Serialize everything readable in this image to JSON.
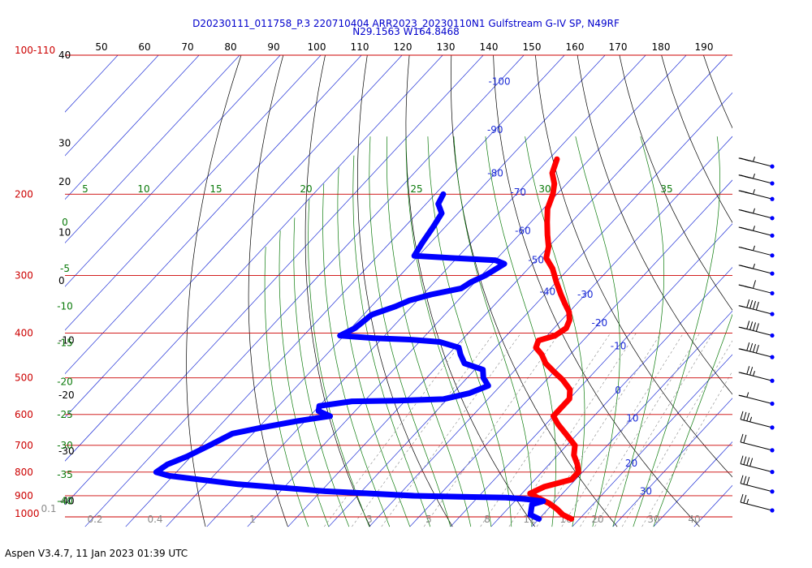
{
  "chart_data": {
    "type": "skew-t-log-p",
    "title": "D20230111_011758_P.3 220710404 ARR2023_20230110N1 Gulfstream G-IV SP, N49RF",
    "subtitle": "N29.1563 W164.8468",
    "footer": "Aspen V3.4.7, 11 Jan 2023  01:39 UTC",
    "pressure_labels": [
      "100-110",
      "200",
      "300",
      "400",
      "500",
      "600",
      "700",
      "800",
      "900",
      "1000"
    ],
    "pressure_levels": [
      100,
      200,
      300,
      400,
      500,
      600,
      700,
      800,
      900,
      1000
    ],
    "isobar_color": "#cc0000",
    "top_temp_labels": [
      "50",
      "60",
      "70",
      "80",
      "90",
      "100",
      "110",
      "120",
      "130",
      "140",
      "150",
      "160",
      "170",
      "180",
      "190"
    ],
    "left_black_labels": [
      {
        "text": "40",
        "p": 100
      },
      {
        "text": "30",
        "p": 155
      },
      {
        "text": "20",
        "p": 188
      },
      {
        "text": "10",
        "p": 242
      },
      {
        "text": "0",
        "p": 308
      },
      {
        "text": "-10",
        "p": 415
      },
      {
        "text": "-20",
        "p": 545
      },
      {
        "text": "-30",
        "p": 720
      },
      {
        "text": "-40",
        "p": 925
      }
    ],
    "isotherm_labels": [
      {
        "text": "-100",
        "p": 114
      },
      {
        "text": "-90",
        "p": 145
      },
      {
        "text": "-80",
        "p": 180
      },
      {
        "text": "-70",
        "p": 198
      },
      {
        "text": "-60",
        "p": 240
      },
      {
        "text": "-50",
        "p": 278
      },
      {
        "text": "-40",
        "p": 325
      },
      {
        "text": "-30",
        "p": 330
      },
      {
        "text": "-20",
        "p": 380
      },
      {
        "text": "-10",
        "p": 427
      },
      {
        "text": "0",
        "p": 532
      },
      {
        "text": "10",
        "p": 612
      },
      {
        "text": "20",
        "p": 765
      },
      {
        "text": "30",
        "p": 880
      }
    ],
    "theta_labels": [
      {
        "text": "5",
        "p": 195
      },
      {
        "text": "10",
        "p": 195
      },
      {
        "text": "15",
        "p": 195
      },
      {
        "text": "20",
        "p": 195
      },
      {
        "text": "25",
        "p": 195
      },
      {
        "text": "30",
        "p": 195
      },
      {
        "text": "35",
        "p": 195
      },
      {
        "text": "0",
        "p": 230
      },
      {
        "text": "-5",
        "p": 290
      },
      {
        "text": "-10",
        "p": 350
      },
      {
        "text": "-15",
        "p": 420
      },
      {
        "text": "-20",
        "p": 510
      },
      {
        "text": "-25",
        "p": 600
      },
      {
        "text": "-30",
        "p": 700
      },
      {
        "text": "-35",
        "p": 810
      },
      {
        "text": "-40",
        "p": 925
      }
    ],
    "mixing_ratio_labels": [
      "0.1",
      "0.2",
      "0.4",
      "1",
      "3",
      "5",
      "8",
      "12",
      "16",
      "20",
      "30",
      "40"
    ],
    "series": [
      {
        "name": "Temperature",
        "color": "#ff0000",
        "points": [
          {
            "p": 168,
            "t": -68
          },
          {
            "p": 180,
            "t": -66
          },
          {
            "p": 190,
            "t": -63
          },
          {
            "p": 200,
            "t": -61
          },
          {
            "p": 215,
            "t": -59
          },
          {
            "p": 230,
            "t": -56
          },
          {
            "p": 245,
            "t": -53
          },
          {
            "p": 260,
            "t": -50
          },
          {
            "p": 275,
            "t": -48
          },
          {
            "p": 290,
            "t": -44
          },
          {
            "p": 310,
            "t": -40
          },
          {
            "p": 330,
            "t": -36
          },
          {
            "p": 345,
            "t": -33
          },
          {
            "p": 360,
            "t": -30
          },
          {
            "p": 375,
            "t": -28
          },
          {
            "p": 390,
            "t": -27
          },
          {
            "p": 405,
            "t": -28
          },
          {
            "p": 415,
            "t": -31
          },
          {
            "p": 430,
            "t": -30
          },
          {
            "p": 445,
            "t": -27
          },
          {
            "p": 465,
            "t": -24
          },
          {
            "p": 485,
            "t": -20
          },
          {
            "p": 505,
            "t": -16
          },
          {
            "p": 530,
            "t": -12
          },
          {
            "p": 555,
            "t": -10
          },
          {
            "p": 580,
            "t": -10
          },
          {
            "p": 605,
            "t": -10
          },
          {
            "p": 630,
            "t": -7
          },
          {
            "p": 660,
            "t": -3
          },
          {
            "p": 700,
            "t": 2
          },
          {
            "p": 735,
            "t": 4
          },
          {
            "p": 770,
            "t": 7
          },
          {
            "p": 800,
            "t": 9
          },
          {
            "p": 830,
            "t": 9
          },
          {
            "p": 860,
            "t": 4
          },
          {
            "p": 890,
            "t": 2
          },
          {
            "p": 910,
            "t": 5
          },
          {
            "p": 935,
            "t": 9
          },
          {
            "p": 960,
            "t": 12
          },
          {
            "p": 990,
            "t": 15
          },
          {
            "p": 1010,
            "t": 18
          }
        ]
      },
      {
        "name": "Dew point",
        "color": "#0000ff",
        "points": [
          {
            "p": 200,
            "t": -88
          },
          {
            "p": 210,
            "t": -87
          },
          {
            "p": 220,
            "t": -84
          },
          {
            "p": 235,
            "t": -83
          },
          {
            "p": 255,
            "t": -82
          },
          {
            "p": 272,
            "t": -81
          },
          {
            "p": 275,
            "t": -71
          },
          {
            "p": 278,
            "t": -60
          },
          {
            "p": 283,
            "t": -57
          },
          {
            "p": 300,
            "t": -59
          },
          {
            "p": 310,
            "t": -61
          },
          {
            "p": 320,
            "t": -62
          },
          {
            "p": 330,
            "t": -68
          },
          {
            "p": 340,
            "t": -72
          },
          {
            "p": 350,
            "t": -74
          },
          {
            "p": 365,
            "t": -78
          },
          {
            "p": 390,
            "t": -79
          },
          {
            "p": 405,
            "t": -81
          },
          {
            "p": 410,
            "t": -72
          },
          {
            "p": 413,
            "t": -63
          },
          {
            "p": 418,
            "t": -55
          },
          {
            "p": 430,
            "t": -49
          },
          {
            "p": 445,
            "t": -47
          },
          {
            "p": 465,
            "t": -44
          },
          {
            "p": 480,
            "t": -38
          },
          {
            "p": 500,
            "t": -36
          },
          {
            "p": 520,
            "t": -33
          },
          {
            "p": 540,
            "t": -36
          },
          {
            "p": 556,
            "t": -41
          },
          {
            "p": 560,
            "t": -52
          },
          {
            "p": 562,
            "t": -63
          },
          {
            "p": 575,
            "t": -70
          },
          {
            "p": 590,
            "t": -69
          },
          {
            "p": 605,
            "t": -65
          },
          {
            "p": 620,
            "t": -72
          },
          {
            "p": 640,
            "t": -79
          },
          {
            "p": 660,
            "t": -85
          },
          {
            "p": 700,
            "t": -88
          },
          {
            "p": 740,
            "t": -91
          },
          {
            "p": 770,
            "t": -94
          },
          {
            "p": 800,
            "t": -95
          },
          {
            "p": 815,
            "t": -91
          },
          {
            "p": 850,
            "t": -72
          },
          {
            "p": 880,
            "t": -49
          },
          {
            "p": 900,
            "t": -26
          },
          {
            "p": 905,
            "t": -14
          },
          {
            "p": 908,
            "t": -3
          },
          {
            "p": 915,
            "t": 2
          },
          {
            "p": 925,
            "t": 7
          },
          {
            "p": 940,
            "t": 5
          },
          {
            "p": 965,
            "t": 6
          },
          {
            "p": 990,
            "t": 7
          },
          {
            "p": 1010,
            "t": 10
          }
        ]
      }
    ],
    "wind_barbs": [
      {
        "p": 170,
        "speed": 105
      },
      {
        "p": 185,
        "speed": 105
      },
      {
        "p": 200,
        "speed": 105
      },
      {
        "p": 220,
        "speed": 105
      },
      {
        "p": 240,
        "speed": 105
      },
      {
        "p": 265,
        "speed": 105
      },
      {
        "p": 290,
        "speed": 105
      },
      {
        "p": 320,
        "speed": 110
      },
      {
        "p": 355,
        "speed": 90
      },
      {
        "p": 395,
        "speed": 90
      },
      {
        "p": 440,
        "speed": 90
      },
      {
        "p": 495,
        "speed": 75
      },
      {
        "p": 555,
        "speed": 55
      },
      {
        "p": 625,
        "speed": 35
      },
      {
        "p": 700,
        "speed": 20
      },
      {
        "p": 780,
        "speed": 40
      },
      {
        "p": 860,
        "speed": 30
      },
      {
        "p": 945,
        "speed": 25
      }
    ]
  }
}
